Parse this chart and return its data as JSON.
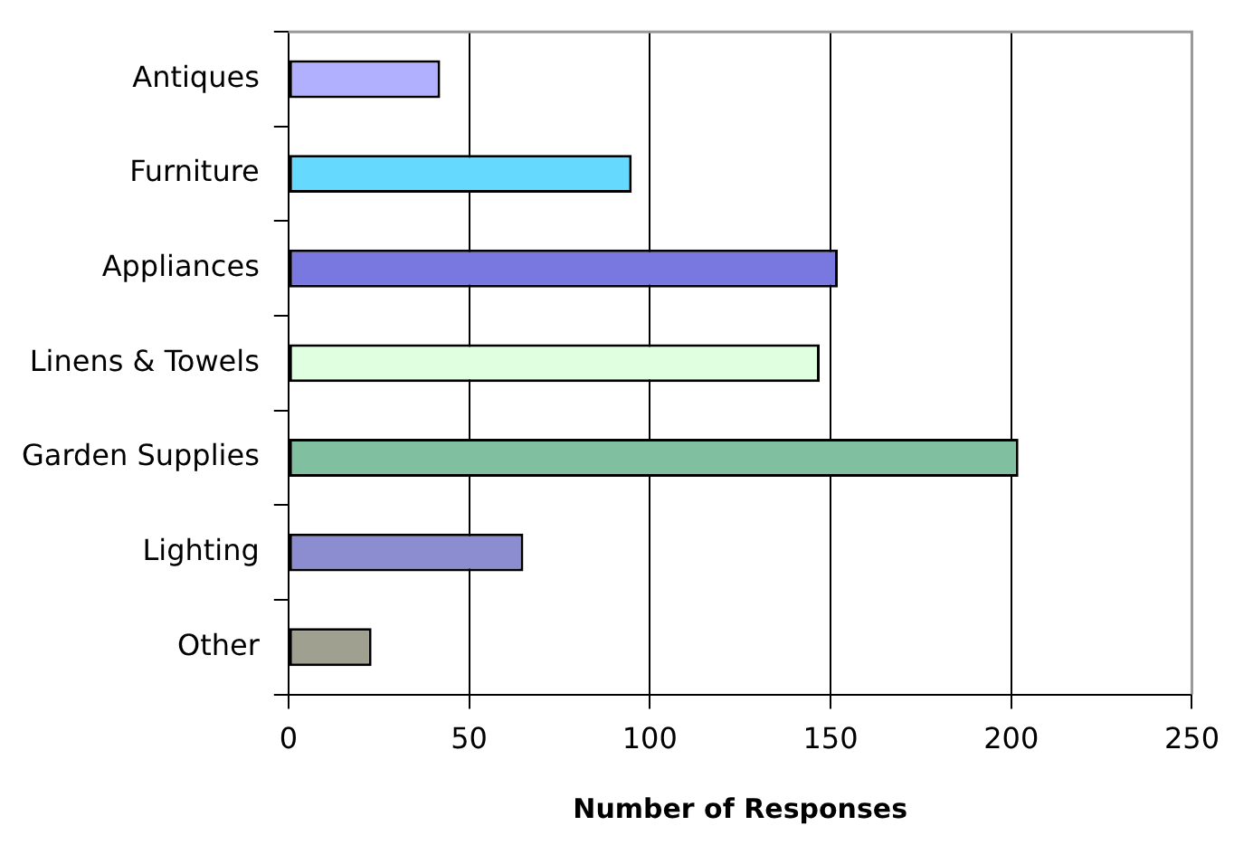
{
  "chart_data": {
    "type": "bar",
    "orientation": "horizontal",
    "xlabel": "Number of Responses",
    "categories": [
      "Antiques",
      "Furniture",
      "Appliances",
      "Linens & Towels",
      "Garden Supplies",
      "Lighting",
      "Other"
    ],
    "values": [
      42,
      95,
      152,
      147,
      202,
      65,
      23
    ],
    "colors": [
      "#b0b0ff",
      "#66d9ff",
      "#7878e0",
      "#e0ffe0",
      "#80c0a0",
      "#8c8cd0",
      "#a0a090"
    ],
    "xlim": [
      0,
      250
    ],
    "xticks": [
      0,
      50,
      100,
      150,
      200,
      250
    ],
    "grid": "x",
    "legend": false
  }
}
